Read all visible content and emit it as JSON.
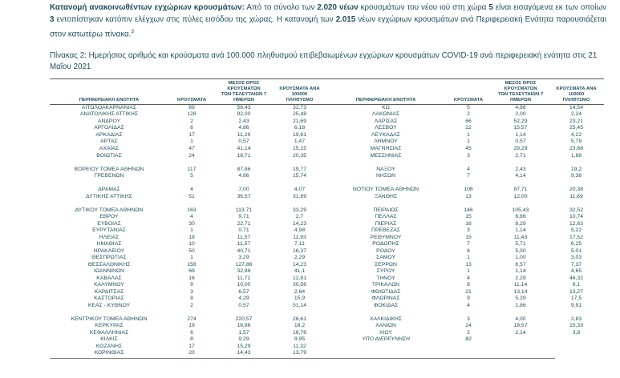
{
  "page": {
    "background_color": "#ffffff",
    "text_color": "#1f4e5f"
  },
  "intro": {
    "segments": [
      {
        "t": "Κατανομή ανακοινωθέντων εγχώριων κρουσμάτων:",
        "b": true
      },
      {
        "t": " Από το σύνολο των ",
        "b": false
      },
      {
        "t": "2.020 νέων",
        "b": true
      },
      {
        "t": " κρουσμάτων του νέου ιού στη χώρα ",
        "b": false
      },
      {
        "t": "5",
        "b": true
      },
      {
        "t": " είναι εισαγόμενα εκ των οποίων ",
        "b": false
      },
      {
        "t": "3",
        "b": true
      },
      {
        "t": " εντοπίστηκαν κατόπιν ελέγχων στις πύλες εισόδου της χώρας.  Η κατανομή των ",
        "b": false
      },
      {
        "t": "2.015",
        "b": true
      },
      {
        "t": " νέων εγχώριων κρουσμάτων ανά Περιφερειακή Ενότητα παρουσιάζεται στον κατωτέρω πίνακα.",
        "b": false
      },
      {
        "t": "3",
        "b": false,
        "sup": true
      }
    ]
  },
  "caption": {
    "text": "Πίνακας 2: Ημερήσιος αριθμός και κρούσματα ανά 100.000 πληθυσμού επιβεβαιωμένων εγχώριων κρουσμάτων COVID-19 ανά περιφερειακή ενότητα στις 21 Μαΐου 2021"
  },
  "table": {
    "column_headers": [
      "ΠΕΡΙΦΕΡΕΙΑΚΗ ΕΝΟΤΗΤΑ",
      "ΚΡΟΥΣΜΑΤΑ",
      "ΜΕΣΟΣ ΟΡΟΣ ΚΡΟΥΣΜΑΤΩΝ\nΤΩΝ ΤΕΛΕΥΤΑΙΩΝ 7\nΗΜΕΡΩΝ",
      "ΚΡΟΥΣΜΑΤΑ ΑΝΑ 100000\nΠΛΗΘΥΣΜΟ"
    ],
    "rows": [
      {
        "l": [
          "ΑΙΤΩΛΟΑΚΑΡΝΑΝΙΑΣ",
          "69",
          "58,43",
          "32,73"
        ],
        "r": [
          "ΚΩ",
          "5",
          "4,86",
          "14,54"
        ]
      },
      {
        "l": [
          "ΑΝΑΤΟΛΙΚΗΣ ΑΤΤΙΚΗΣ",
          "128",
          "92,00",
          "25,48"
        ],
        "r": [
          "ΛΑΚΩΝΙΑΣ",
          "2",
          "2,00",
          "2,24"
        ]
      },
      {
        "l": [
          "ΑΝΔΡΟΥ",
          "2",
          "2,43",
          "21,69"
        ],
        "r": [
          "ΛΑΡΙΣΑΣ",
          "66",
          "52,29",
          "23,21"
        ]
      },
      {
        "l": [
          "ΑΡΓΟΛΙΔΑΣ",
          "6",
          "4,86",
          "6,18"
        ],
        "r": [
          "ΛΕΣΒΟΥ",
          "22",
          "15,57",
          "25,45"
        ]
      },
      {
        "l": [
          "ΑΡΚΑΔΙΑΣ",
          "17",
          "11,29",
          "19,61"
        ],
        "r": [
          "ΛΕΥΚΑΔΑΣ",
          "1",
          "1,14",
          "4,22"
        ]
      },
      {
        "l": [
          "ΑΡΤΑΣ",
          "1",
          "0,57",
          "1,47"
        ],
        "r": [
          "ΛΗΜΝΟΥ",
          "1",
          "0,57",
          "5,79"
        ]
      },
      {
        "l": [
          "ΑΧΑΪΑΣ",
          "47",
          "41,14",
          "15,15"
        ],
        "r": [
          "ΜΑΓΝΗΣΙΑΣ",
          "45",
          "29,29",
          "23,68"
        ]
      },
      {
        "l": [
          "ΒΟΙΩΤΙΑΣ",
          "24",
          "18,71",
          "20,35"
        ],
        "r": [
          "ΜΕΣΣΗΝΙΑΣ",
          "3",
          "2,71",
          "1,88"
        ]
      },
      {
        "spacer": true
      },
      {
        "l": [
          "ΒΟΡΕΙΟΥ ΤΟΜΕΑ ΑΘΗΝΩΝ",
          "117",
          "87,86",
          "19,77"
        ],
        "r": [
          "ΝΑΞΟΥ",
          "4",
          "2,43",
          "19,2"
        ]
      },
      {
        "l": [
          "ΓΡΕΒΕΝΩΝ",
          "5",
          "4,86",
          "15,74"
        ],
        "r": [
          "ΝΗΣΩΝ",
          "7",
          "4,14",
          "9,38"
        ]
      },
      {
        "spacer": true
      },
      {
        "l": [
          "ΔΡΑΜΑΣ",
          "4",
          "7,00",
          "4,07"
        ],
        "r": [
          "ΝΟΤΙΟΥ ΤΟΜΕΑ ΑΘΗΝΩΝ",
          "108",
          "87,71",
          "20,38"
        ]
      },
      {
        "l": [
          "ΔΥΤΙΚΗΣ ΑΤΤΙΚΗΣ",
          "51",
          "36,57",
          "31,69"
        ],
        "r": [
          "ΞΑΝΘΗΣ",
          "13",
          "12,00",
          "11,69"
        ]
      },
      {
        "spacer": true
      },
      {
        "l": [
          "ΔΥΤΙΚΟΥ ΤΟΜΕΑ ΑΘΗΝΩΝ",
          "163",
          "113,71",
          "33,29"
        ],
        "r": [
          "ΠΕΙΡΑΙΩΣ",
          "146",
          "105,43",
          "32,52"
        ]
      },
      {
        "l": [
          "ΕΒΡΟΥ",
          "4",
          "9,71",
          "2,7"
        ],
        "r": [
          "ΠΕΛΛΑΣ",
          "15",
          "6,86",
          "10,74"
        ]
      },
      {
        "l": [
          "ΕΥΒΟΙΑΣ",
          "30",
          "22,71",
          "14,23"
        ],
        "r": [
          "ΠΙΕΡΙΑΣ",
          "16",
          "8,29",
          "12,63"
        ]
      },
      {
        "l": [
          "ΕΥΡΥΤΑΝΙΑΣ",
          "1",
          "0,71",
          "4,98"
        ],
        "r": [
          "ΠΡΕΒΕΖΑΣ",
          "3",
          "1,14",
          "5,22"
        ]
      },
      {
        "l": [
          "ΗΛΕΙΑΣ",
          "19",
          "11,57",
          "11,93"
        ],
        "r": [
          "ΡΕΘΥΜΝΟΥ",
          "15",
          "11,43",
          "17,52"
        ]
      },
      {
        "l": [
          "ΗΜΑΘΙΑΣ",
          "10",
          "11,57",
          "7,11"
        ],
        "r": [
          "ΡΟΔΟΠΗΣ",
          "7",
          "5,71",
          "6,25"
        ]
      },
      {
        "l": [
          "ΗΡΑΚΛΕΙΟΥ",
          "50",
          "40,71",
          "16,37"
        ],
        "r": [
          "ΡΟΔΟΥ",
          "6",
          "5,00",
          "5,01"
        ]
      },
      {
        "l": [
          "ΘΕΣΠΡΩΤΙΑΣ",
          "1",
          "3,29",
          "2,29"
        ],
        "r": [
          "ΣΑΜΟΥ",
          "1",
          "1,00",
          "3,03"
        ]
      },
      {
        "l": [
          "ΘΕΣΣΑΛΟΝΙΚΗΣ",
          "158",
          "127,86",
          "14,23"
        ],
        "r": [
          "ΣΕΡΡΩΝ",
          "13",
          "6,57",
          "7,37"
        ]
      },
      {
        "l": [
          "ΙΩΑΝΝΙΝΩΝ",
          "69",
          "32,86",
          "41,1"
        ],
        "r": [
          "ΣΥΡΟΥ",
          "1",
          "1,14",
          "4,65"
        ]
      },
      {
        "l": [
          "ΚΑΒΑΛΑΣ",
          "16",
          "11,71",
          "12,81"
        ],
        "r": [
          "ΤΗΝΟΥ",
          "4",
          "2,29",
          "46,32"
        ]
      },
      {
        "l": [
          "ΚΑΛΥΜΝΟΥ",
          "9",
          "10,00",
          "30,56"
        ],
        "r": [
          "ΤΡΙΚΑΛΩΝ",
          "8",
          "11,14",
          "6,1"
        ]
      },
      {
        "l": [
          "ΚΑΡΔΙΤΣΑΣ",
          "3",
          "6,57",
          "2,64"
        ],
        "r": [
          "ΦΘΙΩΤΙΔΑΣ",
          "21",
          "13,14",
          "13,27"
        ]
      },
      {
        "l": [
          "ΚΑΣΤΟΡΙΑΣ",
          "8",
          "4,29",
          "15,9"
        ],
        "r": [
          "ΦΛΩΡΙΝΑΣ",
          "9",
          "5,29",
          "17,5"
        ]
      },
      {
        "l": [
          "ΚΕΑΣ - ΚΥΘΝΟΥ",
          "2",
          "0,57",
          "51,14"
        ],
        "r": [
          "ΦΟΚΙΔΑΣ",
          "4",
          "1,86",
          "9,91"
        ]
      },
      {
        "spacer": true
      },
      {
        "l": [
          "ΚΕΝΤΡΙΚΟΥ ΤΟΜΕΑ ΑΘΗΝΩΝ",
          "274",
          "220,57",
          "26,61"
        ],
        "r": [
          "ΧΑΛΚΙΔΙΚΗΣ",
          "3",
          "4,00",
          "2,83"
        ]
      },
      {
        "l": [
          "ΚΕΡΚΥΡΑΣ",
          "19",
          "18,86",
          "18,2"
        ],
        "r": [
          "ΧΑΝΙΩΝ",
          "24",
          "18,57",
          "15,33"
        ]
      },
      {
        "l": [
          "ΚΕΦΑΛΛΗΝΙΑΣ",
          "6",
          "1,57",
          "16,76"
        ],
        "r": [
          "ΧΙΟΥ",
          "2",
          "2,14",
          "3,8"
        ]
      },
      {
        "l": [
          "ΚΙΛΚΙΣ",
          "8",
          "9,29",
          "9,95"
        ],
        "r": [
          "ΥΠΟ ΔΙΕΡΕΥΝΗΣΗ",
          "82",
          "",
          ""
        ],
        "r_italic": true
      },
      {
        "l": [
          "ΚΟΖΑΝΗΣ",
          "17",
          "15,29",
          "11,32"
        ],
        "r": null
      },
      {
        "l": [
          "ΚΟΡΙΝΘΙΑΣ",
          "20",
          "14,43",
          "13,79"
        ],
        "r": null
      }
    ]
  }
}
